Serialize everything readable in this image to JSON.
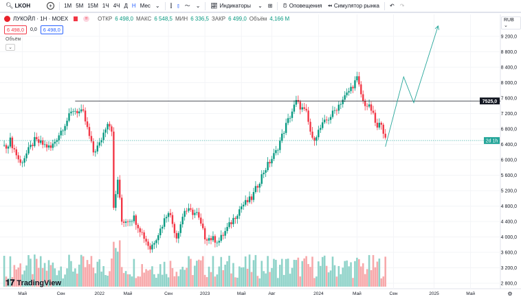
{
  "toolbar": {
    "symbol": "LKOH",
    "intervals": [
      "1М",
      "5М",
      "15М",
      "1Ч",
      "4Ч",
      "Д",
      "Н",
      "Мес"
    ],
    "active_interval": "Н",
    "indicators": "Индикаторы",
    "alerts": "Оповещения",
    "replay": "Симулятор рынка"
  },
  "legend": {
    "title": "ЛУКОЙЛ · 1Н · MOEX",
    "open_label": "ОТКР",
    "open": "6 498,0",
    "high_label": "МАКС",
    "high": "6 548,5",
    "low_label": "МИН",
    "low": "6 336,5",
    "close_label": "ЗАКР",
    "close": "6 499,0",
    "volume_label": "Объём",
    "volume": "4,166 M",
    "bid": "6 498,0",
    "spread": "0,0",
    "ask": "6 498,0"
  },
  "volume_pane_label": "Объём",
  "currency": "RUB",
  "logo": "TradingView",
  "colors": {
    "up": "#089981",
    "down": "#f23645",
    "up_vol": "#8fd3c9",
    "down_vol": "#f7a9ab",
    "forecast": "#26a69a"
  },
  "chart_data": {
    "type": "candlestick",
    "price_ticks": [
      9200,
      8800,
      8400,
      8000,
      7600,
      7200,
      6800,
      6400,
      6000,
      5600,
      5200,
      4800,
      4400,
      4000,
      3600,
      3200,
      2800
    ],
    "price_tick_labels": [
      "9 200,0",
      "8 800,0",
      "8 400,0",
      "8 000,0",
      "7 600,0",
      "7 200,0",
      "6 800,0",
      "6 400,0",
      "6 000,0",
      "5 600,0",
      "5 200,0",
      "4 800,0",
      "4 400,0",
      "4 000,0",
      "3 600,0",
      "3 200,0",
      "2 800,0"
    ],
    "time_labels": [
      "Май",
      "Сен",
      "2022",
      "Май",
      "Сен",
      "2023",
      "Май",
      "Авг",
      "2024",
      "Май",
      "Сен",
      "2025",
      "Май"
    ],
    "time_label_weeks": [
      7,
      26,
      45,
      59,
      79,
      97,
      115,
      130,
      153,
      172,
      190,
      210,
      228
    ],
    "key_points_week_price": [
      [
        -2,
        6300
      ],
      [
        1,
        6500
      ],
      [
        6,
        5900
      ],
      [
        13,
        6500
      ],
      [
        21,
        6300
      ],
      [
        32,
        7300
      ],
      [
        37,
        7200
      ],
      [
        42,
        6200
      ],
      [
        45,
        6400
      ],
      [
        49,
        7000
      ],
      [
        51,
        6800
      ],
      [
        52,
        4700
      ],
      [
        54,
        5500
      ],
      [
        56,
        4400
      ],
      [
        62,
        4500
      ],
      [
        70,
        3700
      ],
      [
        75,
        4200
      ],
      [
        79,
        4700
      ],
      [
        83,
        4000
      ],
      [
        87,
        4700
      ],
      [
        93,
        4600
      ],
      [
        97,
        4000
      ],
      [
        104,
        3900
      ],
      [
        109,
        4300
      ],
      [
        115,
        4800
      ],
      [
        120,
        5000
      ],
      [
        126,
        5700
      ],
      [
        132,
        6200
      ],
      [
        137,
        6900
      ],
      [
        142,
        7500
      ],
      [
        147,
        7200
      ],
      [
        150,
        6500
      ],
      [
        155,
        6900
      ],
      [
        160,
        7200
      ],
      [
        164,
        7500
      ],
      [
        167,
        7700
      ],
      [
        172,
        8100
      ],
      [
        175,
        7500
      ],
      [
        179,
        7300
      ],
      [
        182,
        6800
      ],
      [
        184,
        7000
      ],
      [
        186,
        6500
      ]
    ],
    "horizontal_line": {
      "price": 7525,
      "label": "7525,0",
      "from_week": 33
    },
    "current_price_line": {
      "price": 6499,
      "label": "2d 1h"
    },
    "forecast_week_price": [
      [
        186,
        6340
      ],
      [
        195,
        8150
      ],
      [
        200,
        7480
      ],
      [
        212,
        9470
      ]
    ]
  }
}
